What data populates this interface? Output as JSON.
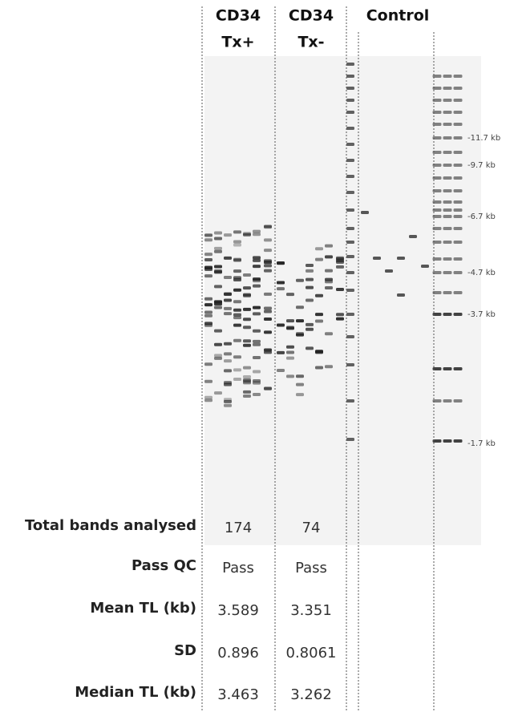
{
  "headers": [
    {
      "lines": [
        "CD34",
        "Tx+"
      ]
    },
    {
      "lines": [
        "CD34",
        "Tx-"
      ]
    },
    {
      "lines": [
        "Control"
      ]
    }
  ],
  "ladder_labels": [
    "-11.7 kb",
    "-9.7 kb",
    "-6.7 kb",
    "-4.7 kb",
    "-3.7 kb",
    "-1.7 kb"
  ],
  "table": {
    "rows": [
      {
        "label": "Total bands analysed",
        "values": [
          "174",
          "74"
        ]
      },
      {
        "label": "Pass QC",
        "values": [
          "Pass",
          "Pass"
        ]
      },
      {
        "label": "Mean TL (kb)",
        "values": [
          "3.589",
          "3.351"
        ]
      },
      {
        "label": "SD",
        "values": [
          "0.896",
          "0.8061"
        ]
      },
      {
        "label": "Median TL (kb)",
        "values": [
          "3.463",
          "3.262"
        ]
      }
    ]
  }
}
